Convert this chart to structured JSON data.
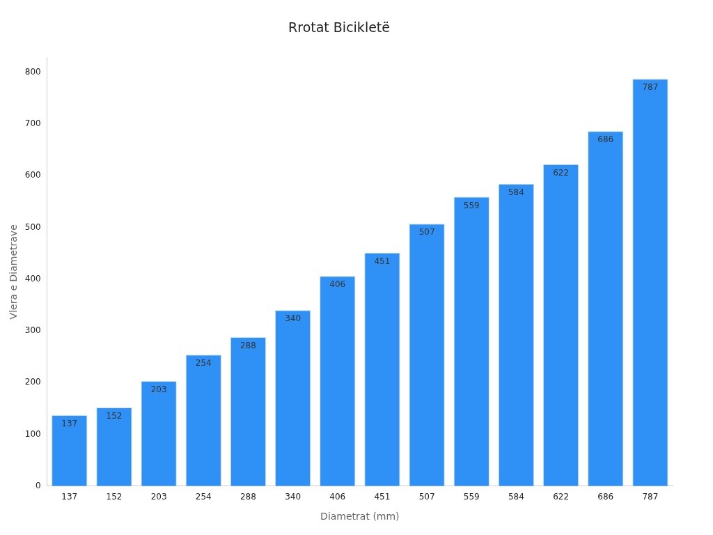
{
  "chart_data": {
    "type": "bar",
    "title": "Rrotat Bicikletë",
    "xlabel": "Diametrat (mm)",
    "ylabel": "Vlera e Diametrave",
    "categories": [
      "137",
      "152",
      "203",
      "254",
      "288",
      "340",
      "406",
      "451",
      "507",
      "559",
      "584",
      "622",
      "686",
      "787"
    ],
    "values": [
      137,
      152,
      203,
      254,
      288,
      340,
      406,
      451,
      507,
      559,
      584,
      622,
      686,
      787
    ],
    "color": "#2f91f5",
    "ylim": [
      0,
      828
    ],
    "yticks": [
      0,
      100,
      200,
      300,
      400,
      500,
      600,
      700,
      800
    ],
    "grid": false,
    "legend": false,
    "data_labels": true
  }
}
